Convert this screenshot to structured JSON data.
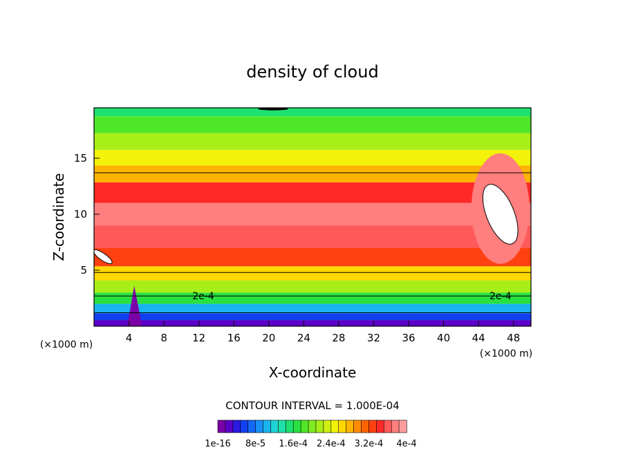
{
  "chart_data": {
    "type": "heatmap",
    "title": "density of cloud",
    "xlabel": "X-coordinate",
    "ylabel": "Z-coordinate",
    "x_unit": "(×1000 m)",
    "z_unit": "(×1000 m)",
    "x_ticks": [
      4,
      8,
      12,
      16,
      20,
      24,
      28,
      32,
      36,
      40,
      44,
      48
    ],
    "z_ticks": [
      5,
      10,
      15
    ],
    "xlim": [
      0,
      50
    ],
    "zlim": [
      0,
      19.5
    ],
    "contour_interval": "CONTOUR INTERVAL = 1.000E-04",
    "contour_labels": [
      "2e-4",
      "2e-4"
    ],
    "colorbar_labels": [
      "1e-16",
      "8e-5",
      "1.6e-4",
      "2.4e-4",
      "3.2e-4",
      "4e-4"
    ],
    "colorbar_colors": [
      "#7a00a8",
      "#5a00c8",
      "#2a1ae0",
      "#1040f0",
      "#1468f5",
      "#1890f5",
      "#1ab4f0",
      "#1ed4d6",
      "#1ee0a8",
      "#1ee070",
      "#28e040",
      "#50e628",
      "#80ea20",
      "#a8ee18",
      "#d0f010",
      "#f2f20a",
      "#ffd800",
      "#ffb400",
      "#ff8c00",
      "#ff6400",
      "#ff4010",
      "#ff2a28",
      "#ff5a5a",
      "#ff7e7e",
      "#ff9c9c"
    ],
    "profile": [
      {
        "z": 0.3,
        "value": 2e-05
      },
      {
        "z": 0.8,
        "value": 5e-05
      },
      {
        "z": 1.5,
        "value": 0.0001
      },
      {
        "z": 2.5,
        "value": 0.00016
      },
      {
        "z": 3.5,
        "value": 0.00021
      },
      {
        "z": 4.7,
        "value": 0.00026
      },
      {
        "z": 6,
        "value": 0.00033
      },
      {
        "z": 8,
        "value": 0.00036
      },
      {
        "z": 10,
        "value": 0.00038
      },
      {
        "z": 12,
        "value": 0.00035
      },
      {
        "z": 13.7,
        "value": 0.00029
      },
      {
        "z": 15,
        "value": 0.00025
      },
      {
        "z": 16.5,
        "value": 0.00021
      },
      {
        "z": 18,
        "value": 0.00018
      },
      {
        "z": 19.5,
        "value": 0.00015
      }
    ]
  }
}
